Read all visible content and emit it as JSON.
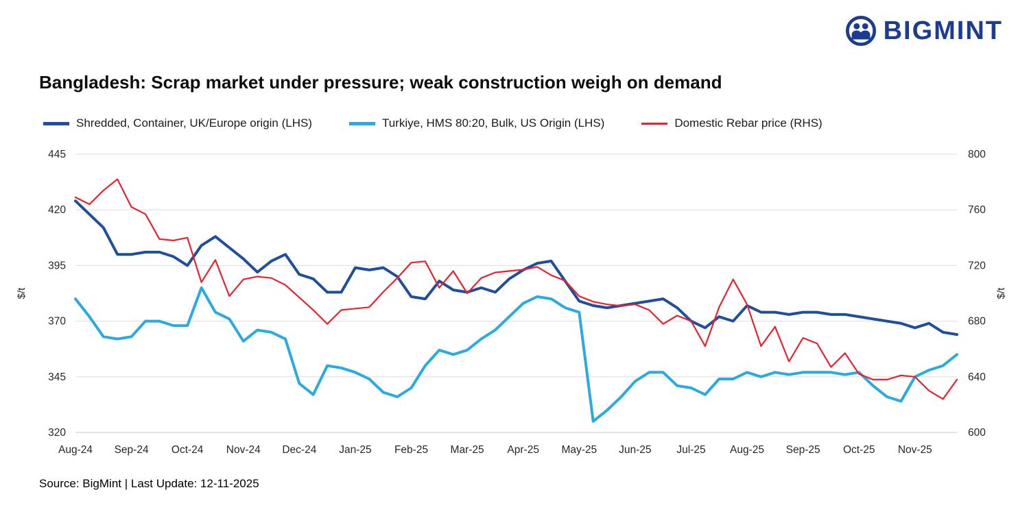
{
  "brand": {
    "name": "BIGMINT",
    "logo_color": "#1b3d91"
  },
  "title": "Bangladesh: Scrap market under pressure; weak construction weigh on demand",
  "source_note": "Source: BigMint | Last Update: 12-11-2025",
  "left_axis_unit": "$/t",
  "right_axis_unit": "$/t",
  "chart_data": {
    "type": "line",
    "title": "Bangladesh: Scrap market under pressure; weak construction weigh on demand",
    "legend_position": "top",
    "grid": "horizontal",
    "points_per_month": 4,
    "x_tick_labels": [
      "Aug-24",
      "Sep-24",
      "Oct-24",
      "Nov-24",
      "Dec-24",
      "Jan-25",
      "Feb-25",
      "Mar-25",
      "Apr-25",
      "May-25",
      "Jun-25",
      "Jul-25",
      "Aug-25",
      "Sep-25",
      "Oct-25",
      "Nov-25"
    ],
    "left_axis": {
      "label": "$/t",
      "min": 320,
      "max": 445,
      "ticks": [
        320,
        345,
        370,
        395,
        420,
        445
      ]
    },
    "right_axis": {
      "label": "$/t",
      "min": 600,
      "max": 800,
      "ticks": [
        600,
        640,
        680,
        720,
        760,
        800
      ]
    },
    "series": [
      {
        "name": "Shredded, Container, UK/Europe origin (LHS)",
        "axis": "left",
        "color": "#1f4e9e",
        "width": 4,
        "values": [
          424,
          418,
          412,
          400,
          400,
          401,
          401,
          399,
          395,
          404,
          408,
          403,
          398,
          392,
          397,
          400,
          391,
          389,
          383,
          383,
          394,
          393,
          394,
          390,
          381,
          380,
          388,
          384,
          383,
          385,
          383,
          389,
          393,
          396,
          397,
          388,
          379,
          377,
          376,
          377,
          378,
          379,
          380,
          376,
          370,
          367,
          372,
          370,
          377,
          374,
          374,
          373,
          374,
          374,
          373,
          373,
          372,
          371,
          370,
          369,
          367,
          369,
          365,
          364
        ]
      },
      {
        "name": "Turkiye, HMS 80:20, Bulk, US Origin (LHS)",
        "axis": "left",
        "color": "#29abe2",
        "width": 4,
        "values": [
          380,
          372,
          363,
          362,
          363,
          370,
          370,
          368,
          368,
          385,
          374,
          371,
          361,
          366,
          365,
          362,
          342,
          337,
          350,
          349,
          347,
          344,
          338,
          336,
          340,
          350,
          357,
          355,
          357,
          362,
          366,
          372,
          378,
          381,
          380,
          376,
          374,
          325,
          330,
          336,
          343,
          347,
          347,
          341,
          340,
          337,
          344,
          344,
          347,
          345,
          347,
          346,
          347,
          347,
          347,
          346,
          347,
          341,
          336,
          334,
          345,
          348,
          350,
          355
        ]
      },
      {
        "name": "Domestic Rebar price (RHS)",
        "axis": "right",
        "color": "#e8212e",
        "width": 2.2,
        "values": [
          769,
          764,
          774,
          782,
          762,
          757,
          739,
          738,
          740,
          708,
          724,
          698,
          710,
          712,
          711,
          706,
          697,
          688,
          678,
          688,
          689,
          690,
          701,
          711,
          722,
          723,
          704,
          716,
          700,
          711,
          715,
          716,
          717,
          719,
          713,
          709,
          698,
          694,
          692,
          691,
          692,
          688,
          678,
          684,
          680,
          662,
          690,
          710,
          692,
          662,
          676,
          651,
          668,
          664,
          647,
          657,
          642,
          638,
          638,
          641,
          640,
          630,
          624,
          638
        ]
      }
    ]
  }
}
